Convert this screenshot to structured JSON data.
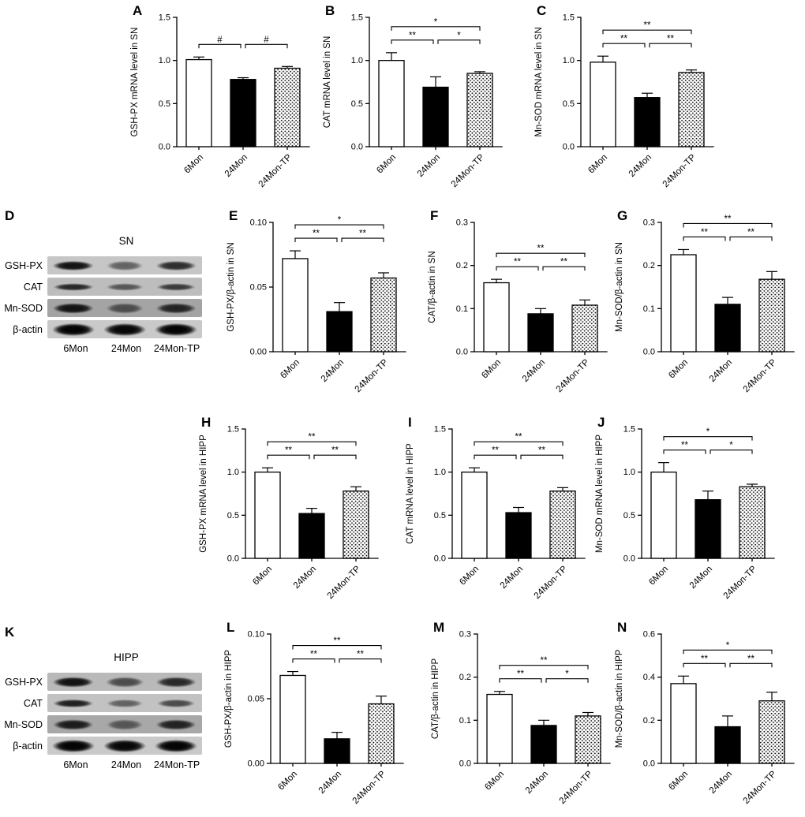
{
  "figure": {
    "categories": [
      "6Mon",
      "24Mon",
      "24Mon-TP"
    ],
    "bar_fill_styles": [
      "open-white",
      "solid-black",
      "stippled-dots"
    ],
    "colors": {
      "axis": "#000000",
      "bar_open": "#ffffff",
      "bar_solid": "#000000",
      "background": "#ffffff"
    }
  },
  "chart_data": [
    {
      "id": "A",
      "letter": "A",
      "type": "bar",
      "ylabel": "GSH-PX mRNA level in SN",
      "categories": [
        "6Mon",
        "24Mon",
        "24Mon-TP"
      ],
      "values": [
        1.01,
        0.78,
        0.91
      ],
      "errors": [
        0.03,
        0.02,
        0.02
      ],
      "ylim": [
        0,
        1.5
      ],
      "yticks": [
        "0.0",
        "0.5",
        "1.0",
        "1.5"
      ],
      "sig": [
        {
          "groups": [
            0,
            1
          ],
          "label": "#",
          "row": 0
        },
        {
          "groups": [
            1,
            2
          ],
          "label": "#",
          "row": 0
        }
      ]
    },
    {
      "id": "B",
      "letter": "B",
      "type": "bar",
      "ylabel": "CAT mRNA level in SN",
      "categories": [
        "6Mon",
        "24Mon",
        "24Mon-TP"
      ],
      "values": [
        1.0,
        0.69,
        0.85
      ],
      "errors": [
        0.09,
        0.12,
        0.02
      ],
      "ylim": [
        0,
        1.5
      ],
      "yticks": [
        "0.0",
        "0.5",
        "1.0",
        "1.5"
      ],
      "sig": [
        {
          "groups": [
            0,
            1
          ],
          "label": "**",
          "row": 0
        },
        {
          "groups": [
            1,
            2
          ],
          "label": "*",
          "row": 0
        },
        {
          "groups": [
            0,
            2
          ],
          "label": "*",
          "row": 1
        }
      ]
    },
    {
      "id": "C",
      "letter": "C",
      "type": "bar",
      "ylabel": "Mn-SOD mRNA level in SN",
      "categories": [
        "6Mon",
        "24Mon",
        "24Mon-TP"
      ],
      "values": [
        0.98,
        0.57,
        0.86
      ],
      "errors": [
        0.07,
        0.05,
        0.03
      ],
      "ylim": [
        0,
        1.5
      ],
      "yticks": [
        "0.0",
        "0.5",
        "1.0",
        "1.5"
      ],
      "sig": [
        {
          "groups": [
            0,
            1
          ],
          "label": "**",
          "row": 0
        },
        {
          "groups": [
            1,
            2
          ],
          "label": "**",
          "row": 0
        },
        {
          "groups": [
            0,
            2
          ],
          "label": "**",
          "row": 1
        }
      ]
    },
    {
      "id": "E",
      "letter": "E",
      "type": "bar",
      "ylabel": "GSH-PX/β-actin in SN",
      "categories": [
        "6Mon",
        "24Mon",
        "24Mon-TP"
      ],
      "values": [
        0.072,
        0.031,
        0.057
      ],
      "errors": [
        0.006,
        0.007,
        0.004
      ],
      "ylim": [
        0,
        0.1
      ],
      "yticks": [
        "0.00",
        "0.05",
        "0.10"
      ],
      "sig": [
        {
          "groups": [
            0,
            1
          ],
          "label": "**",
          "row": 0
        },
        {
          "groups": [
            1,
            2
          ],
          "label": "**",
          "row": 0
        },
        {
          "groups": [
            0,
            2
          ],
          "label": "*",
          "row": 1
        }
      ]
    },
    {
      "id": "F",
      "letter": "F",
      "type": "bar",
      "ylabel": "CAT/β-actin in SN",
      "categories": [
        "6Mon",
        "24Mon",
        "24Mon-TP"
      ],
      "values": [
        0.16,
        0.088,
        0.108
      ],
      "errors": [
        0.008,
        0.012,
        0.012
      ],
      "ylim": [
        0,
        0.3
      ],
      "yticks": [
        "0.0",
        "0.1",
        "0.2",
        "0.3"
      ],
      "sig": [
        {
          "groups": [
            0,
            1
          ],
          "label": "**",
          "row": 0
        },
        {
          "groups": [
            1,
            2
          ],
          "label": "**",
          "row": 0
        },
        {
          "groups": [
            0,
            2
          ],
          "label": "**",
          "row": 1
        }
      ]
    },
    {
      "id": "G",
      "letter": "G",
      "type": "bar",
      "ylabel": "Mn-SOD/β-actin in SN",
      "categories": [
        "6Mon",
        "24Mon",
        "24Mon-TP"
      ],
      "values": [
        0.225,
        0.11,
        0.168
      ],
      "errors": [
        0.012,
        0.016,
        0.018
      ],
      "ylim": [
        0,
        0.3
      ],
      "yticks": [
        "0.0",
        "0.1",
        "0.2",
        "0.3"
      ],
      "sig": [
        {
          "groups": [
            0,
            1
          ],
          "label": "**",
          "row": 0
        },
        {
          "groups": [
            1,
            2
          ],
          "label": "**",
          "row": 0
        },
        {
          "groups": [
            0,
            2
          ],
          "label": "**",
          "row": 1
        }
      ]
    },
    {
      "id": "H",
      "letter": "H",
      "type": "bar",
      "ylabel": "GSH-PX mRNA level in HIPP",
      "categories": [
        "6Mon",
        "24Mon",
        "24Mon-TP"
      ],
      "values": [
        1.0,
        0.52,
        0.78
      ],
      "errors": [
        0.05,
        0.06,
        0.05
      ],
      "ylim": [
        0,
        1.5
      ],
      "yticks": [
        "0.0",
        "0.5",
        "1.0",
        "1.5"
      ],
      "sig": [
        {
          "groups": [
            0,
            1
          ],
          "label": "**",
          "row": 0
        },
        {
          "groups": [
            1,
            2
          ],
          "label": "**",
          "row": 0
        },
        {
          "groups": [
            0,
            2
          ],
          "label": "**",
          "row": 1
        }
      ]
    },
    {
      "id": "I",
      "letter": "I",
      "type": "bar",
      "ylabel": "CAT mRNA level in HIPP",
      "categories": [
        "6Mon",
        "24Mon",
        "24Mon-TP"
      ],
      "values": [
        1.0,
        0.53,
        0.78
      ],
      "errors": [
        0.05,
        0.06,
        0.04
      ],
      "ylim": [
        0,
        1.5
      ],
      "yticks": [
        "0.0",
        "0.5",
        "1.0",
        "1.5"
      ],
      "sig": [
        {
          "groups": [
            0,
            1
          ],
          "label": "**",
          "row": 0
        },
        {
          "groups": [
            1,
            2
          ],
          "label": "**",
          "row": 0
        },
        {
          "groups": [
            0,
            2
          ],
          "label": "**",
          "row": 1
        }
      ]
    },
    {
      "id": "J",
      "letter": "J",
      "type": "bar",
      "ylabel": "Mn-SOD mRNA level in HIPP",
      "categories": [
        "6Mon",
        "24Mon",
        "24Mon-TP"
      ],
      "values": [
        1.0,
        0.68,
        0.83
      ],
      "errors": [
        0.11,
        0.1,
        0.03
      ],
      "ylim": [
        0,
        1.5
      ],
      "yticks": [
        "0.0",
        "0.5",
        "1.0",
        "1.5"
      ],
      "sig": [
        {
          "groups": [
            0,
            1
          ],
          "label": "**",
          "row": 0
        },
        {
          "groups": [
            1,
            2
          ],
          "label": "*",
          "row": 0
        },
        {
          "groups": [
            0,
            2
          ],
          "label": "*",
          "row": 1
        }
      ]
    },
    {
      "id": "L",
      "letter": "L",
      "type": "bar",
      "ylabel": "GSH-PX/β-actin in HIPP",
      "categories": [
        "6Mon",
        "24Mon",
        "24Mon-TP"
      ],
      "values": [
        0.068,
        0.019,
        0.046
      ],
      "errors": [
        0.003,
        0.005,
        0.006
      ],
      "ylim": [
        0,
        0.1
      ],
      "yticks": [
        "0.00",
        "0.05",
        "0.10"
      ],
      "sig": [
        {
          "groups": [
            0,
            1
          ],
          "label": "**",
          "row": 0
        },
        {
          "groups": [
            1,
            2
          ],
          "label": "**",
          "row": 0
        },
        {
          "groups": [
            0,
            2
          ],
          "label": "**",
          "row": 1
        }
      ]
    },
    {
      "id": "M",
      "letter": "M",
      "type": "bar",
      "ylabel": "CAT/β-actin in HIPP",
      "categories": [
        "6Mon",
        "24Mon",
        "24Mon-TP"
      ],
      "values": [
        0.16,
        0.088,
        0.11
      ],
      "errors": [
        0.007,
        0.012,
        0.008
      ],
      "ylim": [
        0,
        0.3
      ],
      "yticks": [
        "0.0",
        "0.1",
        "0.2",
        "0.3"
      ],
      "sig": [
        {
          "groups": [
            0,
            1
          ],
          "label": "**",
          "row": 0
        },
        {
          "groups": [
            1,
            2
          ],
          "label": "*",
          "row": 0
        },
        {
          "groups": [
            0,
            2
          ],
          "label": "**",
          "row": 1
        }
      ]
    },
    {
      "id": "N",
      "letter": "N",
      "type": "bar",
      "ylabel": "Mn-SOD/β-actin in HIPP",
      "categories": [
        "6Mon",
        "24Mon",
        "24Mon-TP"
      ],
      "values": [
        0.37,
        0.17,
        0.29
      ],
      "errors": [
        0.035,
        0.05,
        0.04
      ],
      "ylim": [
        0,
        0.6
      ],
      "yticks": [
        "0.0",
        "0.2",
        "0.4",
        "0.6"
      ],
      "sig": [
        {
          "groups": [
            0,
            1
          ],
          "label": "**",
          "row": 0
        },
        {
          "groups": [
            1,
            2
          ],
          "label": "**",
          "row": 0
        },
        {
          "groups": [
            0,
            2
          ],
          "label": "*",
          "row": 1
        }
      ]
    }
  ],
  "blots": [
    {
      "id": "D",
      "letter": "D",
      "title": "SN",
      "lanes": [
        "6Mon",
        "24Mon",
        "24Mon-TP"
      ],
      "rows": [
        {
          "label": "GSH-PX",
          "bg": "#c6c6c6",
          "band_h": 12,
          "bands": [
            0.92,
            0.5,
            0.78
          ]
        },
        {
          "label": "CAT",
          "bg": "#bdbdbd",
          "band_h": 9,
          "bands": [
            0.8,
            0.55,
            0.7
          ]
        },
        {
          "label": "Mn-SOD",
          "bg": "#a4a4a4",
          "band_h": 13,
          "bands": [
            0.9,
            0.55,
            0.8
          ]
        },
        {
          "label": "β-actin",
          "bg": "#c9c9c9",
          "band_h": 16,
          "bands": [
            1,
            0.98,
            1
          ]
        }
      ]
    },
    {
      "id": "K",
      "letter": "K",
      "title": "HIPP",
      "lanes": [
        "6Mon",
        "24Mon",
        "24Mon-TP"
      ],
      "rows": [
        {
          "label": "GSH-PX",
          "bg": "#b9b9b9",
          "band_h": 13,
          "bands": [
            0.92,
            0.6,
            0.8
          ]
        },
        {
          "label": "CAT",
          "bg": "#c2c2c2",
          "band_h": 10,
          "bands": [
            0.85,
            0.5,
            0.62
          ]
        },
        {
          "label": "Mn-SOD",
          "bg": "#a8a8a8",
          "band_h": 13,
          "bands": [
            0.85,
            0.5,
            0.82
          ]
        },
        {
          "label": "β-actin",
          "bg": "#c9c9c9",
          "band_h": 16,
          "bands": [
            1,
            0.98,
            1
          ]
        }
      ]
    }
  ]
}
